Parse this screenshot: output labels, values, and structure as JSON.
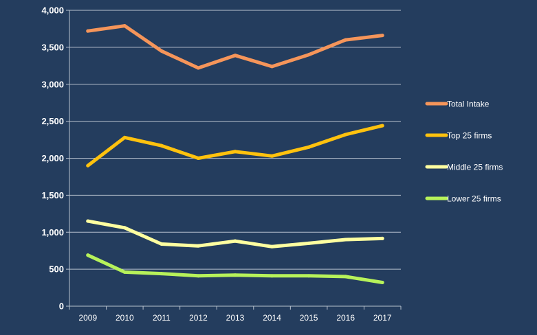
{
  "chart_data": {
    "type": "line",
    "title": "",
    "xlabel": "",
    "ylabel": "",
    "categories": [
      "2009",
      "2010",
      "2011",
      "2012",
      "2013",
      "2014",
      "2015",
      "2016",
      "2017"
    ],
    "y_ticks": [
      "0",
      "500",
      "1,000",
      "1,500",
      "2,000",
      "2,500",
      "3,000",
      "3,500",
      "4,000"
    ],
    "ylim": [
      0,
      4000
    ],
    "grid": true,
    "legend_position": "right",
    "background_color": "#243d5e",
    "series": [
      {
        "name": "Total Intake",
        "color": "#f5955a",
        "values": [
          3720,
          3790,
          3450,
          3220,
          3390,
          3240,
          3400,
          3600,
          3660
        ]
      },
      {
        "name": "Top 25 firms",
        "color": "#ffc20e",
        "values": [
          1900,
          2280,
          2170,
          2000,
          2090,
          2030,
          2150,
          2320,
          2440
        ]
      },
      {
        "name": "Middle 25 firms",
        "color": "#ffffa0",
        "values": [
          1150,
          1060,
          840,
          815,
          880,
          805,
          850,
          900,
          915
        ]
      },
      {
        "name": "Lower 25 firms",
        "color": "#b7f25a",
        "values": [
          690,
          460,
          440,
          410,
          420,
          410,
          410,
          400,
          320
        ]
      }
    ]
  }
}
